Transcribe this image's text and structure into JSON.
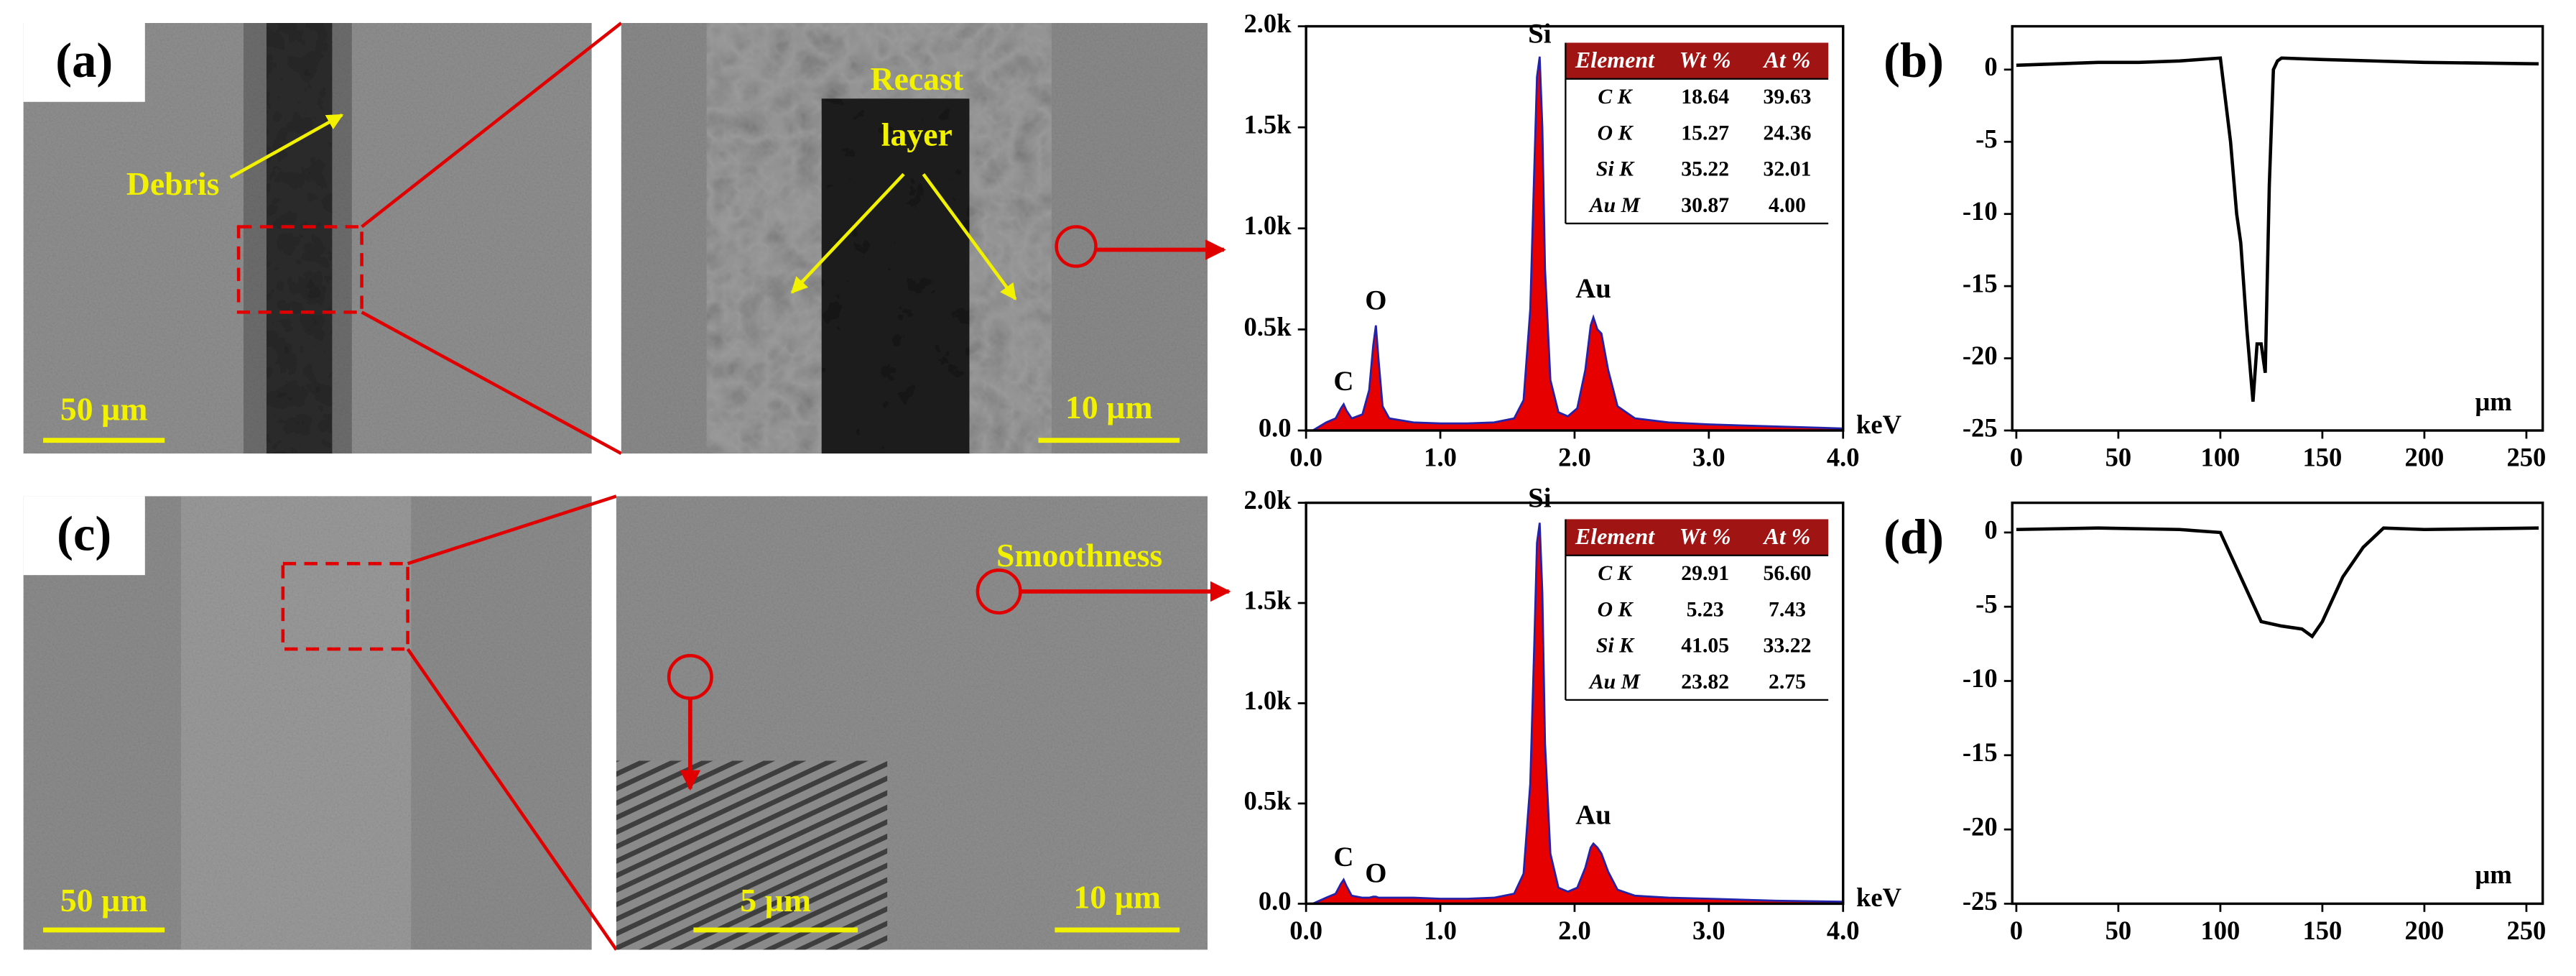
{
  "sem": {
    "top_overview": {
      "panel_label": "(a)",
      "label": "Debris",
      "scale": "50 µm"
    },
    "top_zoom": {
      "label": [
        "Recast",
        "layer"
      ],
      "scale": "10 µm"
    },
    "bottom_overview": {
      "panel_label": "(c)",
      "scale": "50 µm"
    },
    "bottom_zoom": {
      "label": "Smoothness",
      "inset_scale": "5 µm",
      "scale": "10 µm"
    }
  },
  "chart_data": [
    {
      "type": "area",
      "x_label": "keV",
      "x": [
        0.05,
        0.15,
        0.22,
        0.26,
        0.28,
        0.3,
        0.34,
        0.42,
        0.47,
        0.5,
        0.52,
        0.54,
        0.57,
        0.62,
        0.8,
        1.0,
        1.2,
        1.4,
        1.55,
        1.62,
        1.67,
        1.7,
        1.72,
        1.74,
        1.76,
        1.78,
        1.82,
        1.88,
        1.95,
        2.02,
        2.08,
        2.12,
        2.14,
        2.17,
        2.2,
        2.25,
        2.32,
        2.45,
        2.7,
        3.0,
        3.5,
        4.0
      ],
      "values": [
        0,
        40,
        60,
        110,
        130,
        100,
        60,
        80,
        200,
        420,
        520,
        350,
        120,
        60,
        40,
        35,
        35,
        40,
        60,
        150,
        600,
        1300,
        1750,
        1850,
        1500,
        800,
        250,
        90,
        70,
        110,
        300,
        520,
        560,
        500,
        480,
        300,
        120,
        60,
        40,
        30,
        20,
        10
      ],
      "color": "#e60000",
      "edge_color": "#2222aa",
      "xlim": [
        0,
        4
      ],
      "xticks": [
        {
          "value": 0,
          "label": "0.0"
        },
        {
          "value": 1,
          "label": "1.0"
        },
        {
          "value": 2,
          "label": "2.0"
        },
        {
          "value": 3,
          "label": "3.0"
        },
        {
          "value": 4,
          "label": "4.0"
        }
      ],
      "ylim": [
        0,
        2000
      ],
      "yticks": [
        {
          "value": 0,
          "label": "0.0"
        },
        {
          "value": 500,
          "label": "0.5k"
        },
        {
          "value": 1000,
          "label": "1.0k"
        },
        {
          "value": 1500,
          "label": "1.5k"
        },
        {
          "value": 2000,
          "label": "2.0k"
        }
      ],
      "annotations": [
        {
          "text": "C",
          "x": 0.28,
          "y": 230
        },
        {
          "text": "O",
          "x": 0.52,
          "y": 630
        },
        {
          "text": "Si",
          "x": 1.74,
          "y": 1950
        },
        {
          "text": "Au",
          "x": 2.14,
          "y": 690
        }
      ],
      "table": {
        "header": [
          "Element",
          "Wt %",
          "At %"
        ],
        "rows": [
          [
            "C K",
            "18.64",
            "39.63"
          ],
          [
            "O K",
            "15.27",
            "24.36"
          ],
          [
            "Si K",
            "35.22",
            "32.01"
          ],
          [
            "Au M",
            "30.87",
            "4.00"
          ]
        ]
      }
    },
    {
      "type": "line",
      "panel_label": "(b)",
      "x_label": "μm",
      "x": [
        0,
        20,
        40,
        60,
        80,
        100,
        105,
        108,
        110,
        113,
        116,
        118,
        120,
        122,
        124,
        126,
        128,
        130,
        150,
        200,
        256
      ],
      "values": [
        0.3,
        0.4,
        0.5,
        0.5,
        0.6,
        0.8,
        -5,
        -10,
        -12,
        -18,
        -23,
        -19,
        -19,
        -21,
        -8,
        0,
        0.6,
        0.8,
        0.7,
        0.5,
        0.4
      ],
      "color": "#000000",
      "xlim": [
        -2,
        258
      ],
      "xticks": [
        0,
        50,
        100,
        150,
        200,
        250
      ],
      "ylim": [
        -25,
        3
      ],
      "yticks": [
        0,
        -5,
        -10,
        -15,
        -20,
        -25
      ]
    },
    {
      "type": "area",
      "x_label": "keV",
      "x": [
        0.05,
        0.15,
        0.22,
        0.26,
        0.28,
        0.3,
        0.34,
        0.42,
        0.47,
        0.5,
        0.52,
        0.54,
        0.57,
        0.62,
        0.8,
        1.0,
        1.2,
        1.4,
        1.55,
        1.62,
        1.67,
        1.7,
        1.72,
        1.74,
        1.76,
        1.78,
        1.82,
        1.88,
        1.95,
        2.02,
        2.08,
        2.12,
        2.14,
        2.17,
        2.2,
        2.25,
        2.32,
        2.45,
        2.7,
        3.0,
        3.5,
        4.0
      ],
      "values": [
        0,
        30,
        50,
        100,
        120,
        90,
        40,
        30,
        30,
        35,
        35,
        30,
        30,
        30,
        30,
        25,
        25,
        30,
        50,
        150,
        600,
        1300,
        1800,
        1900,
        1550,
        800,
        250,
        80,
        60,
        80,
        180,
        280,
        300,
        280,
        250,
        160,
        70,
        40,
        30,
        25,
        15,
        10
      ],
      "color": "#e60000",
      "edge_color": "#2222aa",
      "xlim": [
        0,
        4
      ],
      "xticks": [
        {
          "value": 0,
          "label": "0.0"
        },
        {
          "value": 1,
          "label": "1.0"
        },
        {
          "value": 2,
          "label": "2.0"
        },
        {
          "value": 3,
          "label": "3.0"
        },
        {
          "value": 4,
          "label": "4.0"
        }
      ],
      "ylim": [
        0,
        2000
      ],
      "yticks": [
        {
          "value": 0,
          "label": "0.0"
        },
        {
          "value": 500,
          "label": "0.5k"
        },
        {
          "value": 1000,
          "label": "1.0k"
        },
        {
          "value": 1500,
          "label": "1.5k"
        },
        {
          "value": 2000,
          "label": "2.0k"
        }
      ],
      "annotations": [
        {
          "text": "C",
          "x": 0.28,
          "y": 220
        },
        {
          "text": "O",
          "x": 0.52,
          "y": 140
        },
        {
          "text": "Si",
          "x": 1.74,
          "y": 2010
        },
        {
          "text": "Au",
          "x": 2.14,
          "y": 430
        }
      ],
      "table": {
        "header": [
          "Element",
          "Wt %",
          "At %"
        ],
        "rows": [
          [
            "C K",
            "29.91",
            "56.60"
          ],
          [
            "O K",
            "5.23",
            "7.43"
          ],
          [
            "Si K",
            "41.05",
            "33.22"
          ],
          [
            "Au M",
            "23.82",
            "2.75"
          ]
        ]
      }
    },
    {
      "type": "line",
      "panel_label": "(d)",
      "x_label": "μm",
      "x": [
        0,
        40,
        80,
        100,
        110,
        120,
        130,
        140,
        145,
        150,
        160,
        170,
        180,
        200,
        256
      ],
      "values": [
        0.2,
        0.3,
        0.2,
        0,
        -3,
        -6,
        -6.3,
        -6.5,
        -7,
        -6,
        -3,
        -1,
        0.3,
        0.2,
        0.3
      ],
      "color": "#000000",
      "xlim": [
        -2,
        258
      ],
      "xticks": [
        0,
        50,
        100,
        150,
        200,
        250
      ],
      "ylim": [
        -25,
        2
      ],
      "yticks": [
        0,
        -5,
        -10,
        -15,
        -20,
        -25
      ]
    }
  ]
}
